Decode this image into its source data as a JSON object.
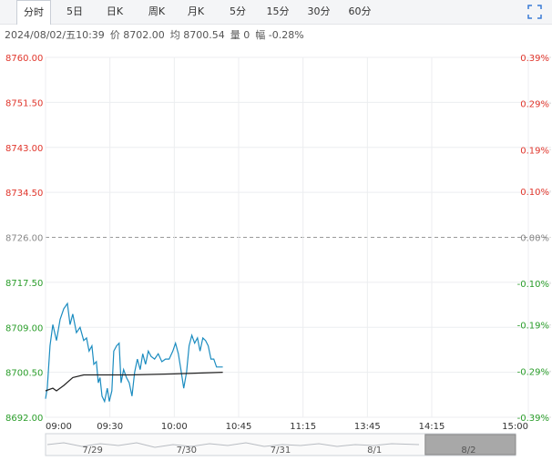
{
  "toolbar": {
    "tabs": [
      "分时",
      "5日",
      "日K",
      "周K",
      "月K",
      "5分",
      "15分",
      "30分",
      "60分"
    ],
    "selected": 0
  },
  "info": {
    "datetime": "2024/08/02/五10:39",
    "price": "价 8702.00",
    "average": "均 8700.54",
    "volume": "量 0",
    "change": "幅 -0.28%"
  },
  "chart_data": {
    "type": "line",
    "ylim": [
      8692,
      8760
    ],
    "yticks": [
      {
        "value": 8760,
        "label": "8760.00"
      },
      {
        "value": 8751.5,
        "label": "8751.50"
      },
      {
        "value": 8743,
        "label": "8743.00"
      },
      {
        "value": 8734.5,
        "label": "8734.50"
      },
      {
        "value": 8726,
        "label": "8726.00"
      },
      {
        "value": 8717.5,
        "label": "8717.50"
      },
      {
        "value": 8709,
        "label": "8709.00"
      },
      {
        "value": 8700.5,
        "label": "8700.50"
      },
      {
        "value": 8692,
        "label": "8692.00"
      }
    ],
    "y2lim": [
      -0.39,
      0.39
    ],
    "y2ticks": [
      {
        "value": 0.39,
        "label": "0.39%"
      },
      {
        "value": 0.29,
        "label": "0.29%"
      },
      {
        "value": 0.19,
        "label": "0.19%"
      },
      {
        "value": 0.1,
        "label": "0.10%"
      },
      {
        "value": 0,
        "label": "0.00%"
      },
      {
        "value": -0.1,
        "label": "-0.10%"
      },
      {
        "value": -0.19,
        "label": "-0.19%"
      },
      {
        "value": -0.29,
        "label": "-0.29%"
      },
      {
        "value": -0.39,
        "label": "-0.39%"
      }
    ],
    "xlim": [
      0,
      225
    ],
    "xticks": [
      {
        "value": 0,
        "label": "09:00"
      },
      {
        "value": 30,
        "label": "09:30"
      },
      {
        "value": 60,
        "label": "10:00"
      },
      {
        "value": 90,
        "label": "10:45"
      },
      {
        "value": 120,
        "label": "11:15"
      },
      {
        "value": 150,
        "label": "13:45"
      },
      {
        "value": 180,
        "label": "14:15"
      },
      {
        "value": 225,
        "label": "15:00"
      }
    ],
    "grid": true,
    "up_color": "#e0352b",
    "down_color": "#2a9d2a",
    "flat_color": "#888888",
    "series": [
      {
        "name": "价",
        "color": "#1b8cc0",
        "x": [
          0,
          0.8,
          2.1,
          3.4,
          5.1,
          6.8,
          8.5,
          10.2,
          11.4,
          12.7,
          14.4,
          16.1,
          17.8,
          19.1,
          20.3,
          21.6,
          22.5,
          23.7,
          24.6,
          25.4,
          26.3,
          27.5,
          28.8,
          29.7,
          30.9,
          31.8,
          33.1,
          34.3,
          35.2,
          36.4,
          37.7,
          39,
          40.3,
          41.5,
          42.8,
          44.1,
          45.3,
          46.6,
          47.9,
          49.2,
          50.8,
          52.5,
          54.2,
          55.9,
          57.6,
          59.3,
          60.6,
          61.9,
          63.1,
          64.4,
          65.7,
          66.9,
          68.2,
          69.5,
          70.8,
          72,
          73.3,
          74.6,
          75.8,
          77.1,
          78.4,
          79.7,
          82.6
        ],
        "values": [
          8695.5,
          8697.5,
          8705.5,
          8709.5,
          8706.5,
          8710.5,
          8712.5,
          8713.5,
          8709.5,
          8711.5,
          8708,
          8709,
          8706.5,
          8707,
          8704.5,
          8705.5,
          8702,
          8702.5,
          8698.5,
          8699.5,
          8696,
          8695,
          8697.5,
          8695,
          8697,
          8704.5,
          8705.5,
          8706,
          8698.5,
          8701,
          8699.5,
          8698.5,
          8696,
          8700.5,
          8703,
          8701,
          8704,
          8702,
          8704.5,
          8703.5,
          8703,
          8704,
          8702.5,
          8703,
          8703,
          8704.5,
          8706,
          8704,
          8701,
          8697.5,
          8700.5,
          8705.5,
          8707.5,
          8706,
          8707,
          8704.5,
          8707,
          8706.5,
          8705.5,
          8703,
          8703,
          8701.5,
          8701.5
        ]
      },
      {
        "name": "均",
        "color": "#222222",
        "x": [
          0,
          3.4,
          5.1,
          8.5,
          12.7,
          17.8,
          25.4,
          40,
          60,
          82.6
        ],
        "values": [
          8697,
          8697.5,
          8697,
          8698,
          8699.5,
          8700,
          8700,
          8700,
          8700.2,
          8700.5
        ]
      }
    ]
  },
  "navigator": {
    "labels": [
      "7/29",
      "7/30",
      "7/31",
      "8/1",
      "8/2"
    ],
    "selected": 4
  }
}
